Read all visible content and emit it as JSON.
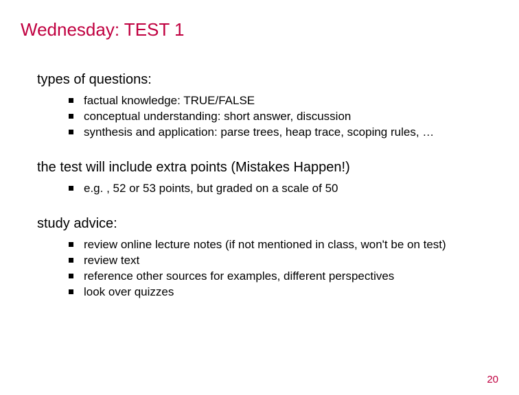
{
  "title": "Wednesday: TEST 1",
  "title_color": "#c00040",
  "title_fontsize": 26,
  "background_color": "#ffffff",
  "body_color": "#000000",
  "heading_fontsize": 20,
  "bullet_fontsize": 17,
  "bullet_marker_color": "#000000",
  "sections": [
    {
      "heading": "types of questions:",
      "bullets": [
        "factual knowledge: TRUE/FALSE",
        "conceptual understanding: short answer, discussion",
        "synthesis and application: parse trees, heap trace, scoping rules, …"
      ]
    },
    {
      "heading": "the test will include extra points (Mistakes Happen!)",
      "bullets": [
        "e.g. , 52 or 53 points, but graded on a scale of 50"
      ]
    },
    {
      "heading": "study advice:",
      "bullets": [
        "review online lecture notes (if not mentioned in class, won't be on test)",
        "review text",
        "reference other sources for examples, different perspectives",
        "look over quizzes"
      ]
    }
  ],
  "page_number": "20",
  "page_number_color": "#c00040"
}
